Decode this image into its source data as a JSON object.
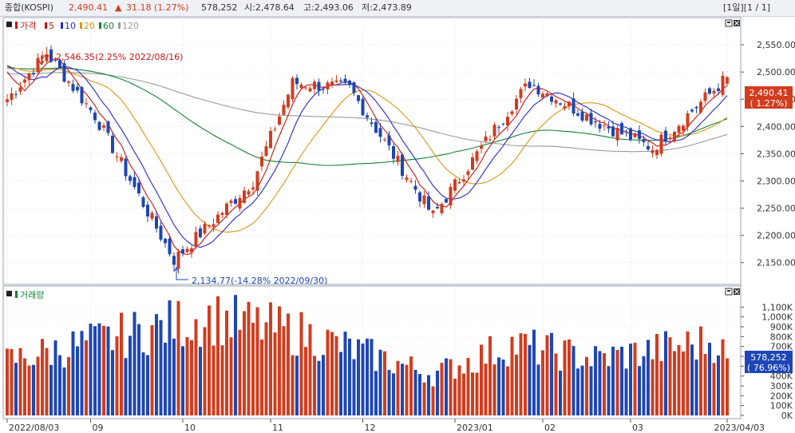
{
  "header": {
    "title": "종합(KOSPI)",
    "price": "2,490.41",
    "arrow": "▲",
    "change": "31.18 (1.27%)",
    "volume": "578,252",
    "open": "시:2,478.64",
    "high": "고:2,493.06",
    "low": "저:2,473.89",
    "page_info": "[1일][1 / 1]"
  },
  "colors": {
    "up": "#d23c1e",
    "down": "#1e46b4",
    "ma5": "#c81414",
    "ma10": "#2828c8",
    "ma20": "#dc9614",
    "ma60": "#148232",
    "ma120": "#9b9b9b"
  },
  "price_panel": {
    "legend": [
      {
        "key": "price",
        "label": "가격",
        "color": "#c81414"
      },
      {
        "key": "ma5",
        "label": "5",
        "color": "#c81414"
      },
      {
        "key": "ma10",
        "label": "10",
        "color": "#2828c8"
      },
      {
        "key": "ma20",
        "label": "20",
        "color": "#dc9614"
      },
      {
        "key": "ma60",
        "label": "60",
        "color": "#148232"
      },
      {
        "key": "ma120",
        "label": "120",
        "color": "#9b9b9b"
      }
    ],
    "max_annotation": "2,546.35(2.25% 2022/08/16)",
    "min_annotation": "2,134.77(-14.28% 2022/09/30)",
    "last_price_label": "2,490.41",
    "last_change_label": "( 1.27%)"
  },
  "volume_panel": {
    "legend": "거래량",
    "last_volume_label": "578,252",
    "last_ratio_label": "( 76.96%)"
  },
  "chart_data": [
    {
      "type": "candlestick",
      "title": "종합(KOSPI)",
      "x_labels": [
        "2022/08/03",
        "09",
        "10",
        "11",
        "12",
        "2023/01",
        "02",
        "03",
        "2023/04/03"
      ],
      "y_ticks": [
        2150,
        2200,
        2250,
        2300,
        2350,
        2400,
        2450,
        2500,
        2550
      ],
      "ylim": [
        2110,
        2600
      ],
      "ohlc_keyframes": [
        {
          "date": "2022/08/03",
          "close": 2450
        },
        {
          "date": "2022/08/16",
          "close": 2535,
          "high": 2546.35
        },
        {
          "date": "2022/08/31",
          "close": 2420
        },
        {
          "date": "2022/09/30",
          "close": 2155,
          "low": 2134.77
        },
        {
          "date": "2022/10/31",
          "close": 2300
        },
        {
          "date": "2022/11/11",
          "close": 2480
        },
        {
          "date": "2022/12/01",
          "close": 2470
        },
        {
          "date": "2022/12/29",
          "close": 2236
        },
        {
          "date": "2023/01/31",
          "close": 2440
        },
        {
          "date": "2023/02/06",
          "close": 2480
        },
        {
          "date": "2023/02/28",
          "close": 2410
        },
        {
          "date": "2023/03/20",
          "close": 2360
        },
        {
          "date": "2023/04/03",
          "open": 2478.64,
          "high": 2493.06,
          "low": 2473.89,
          "close": 2490.41
        }
      ],
      "last": {
        "date": "2023/04/03",
        "open": 2478.64,
        "high": 2493.06,
        "low": 2473.89,
        "close": 2490.41,
        "change": 31.18,
        "change_pct": 1.27
      },
      "moving_averages": [
        "5",
        "10",
        "20",
        "60",
        "120"
      ]
    },
    {
      "type": "bar",
      "title": "거래량",
      "y_ticks": [
        "0K",
        "100K",
        "200K",
        "300K",
        "400K",
        "500K",
        "600K",
        "700K",
        "800K",
        "900K",
        "1,000K",
        "1,100K"
      ],
      "ylim": [
        0,
        1200000
      ],
      "last_volume": 578252,
      "last_ratio_pct": 76.96,
      "volume_keyframes": [
        {
          "date": "2022/08/03",
          "volume": 600000
        },
        {
          "date": "2022/09/30",
          "volume": 1000000
        },
        {
          "date": "2022/10/13",
          "volume": 1080000
        },
        {
          "date": "2022/11/15",
          "volume": 900000
        },
        {
          "date": "2022/12/29",
          "volume": 450000
        },
        {
          "date": "2023/01/31",
          "volume": 780000
        },
        {
          "date": "2023/02/28",
          "volume": 620000
        },
        {
          "date": "2023/03/31",
          "volume": 820000
        },
        {
          "date": "2023/04/03",
          "volume": 578252
        }
      ]
    }
  ]
}
